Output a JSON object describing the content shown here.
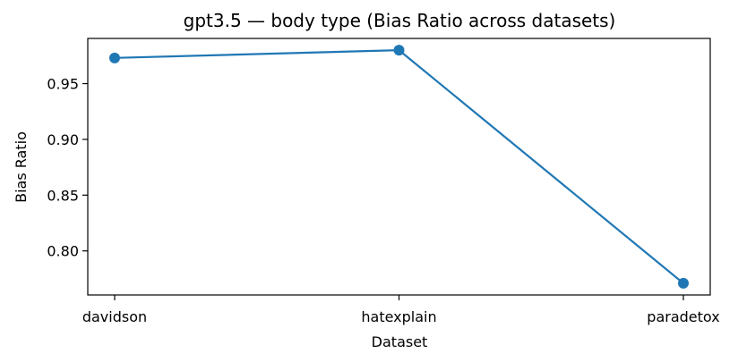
{
  "chart_data": {
    "type": "line",
    "title": "gpt3.5 — body type (Bias Ratio across datasets)",
    "xlabel": "Dataset",
    "ylabel": "Bias Ratio",
    "categories": [
      "davidson",
      "hatexplain",
      "paradetox"
    ],
    "series": [
      {
        "values": [
          0.973,
          0.98,
          0.771
        ]
      }
    ],
    "ylim": [
      0.7605,
      0.9905
    ],
    "yticks": [
      0.8,
      0.85,
      0.9,
      0.95
    ],
    "ytick_labels": [
      "0.80",
      "0.85",
      "0.90",
      "0.95"
    ],
    "grid": false,
    "colors": {
      "series": "#1f77b4"
    }
  }
}
